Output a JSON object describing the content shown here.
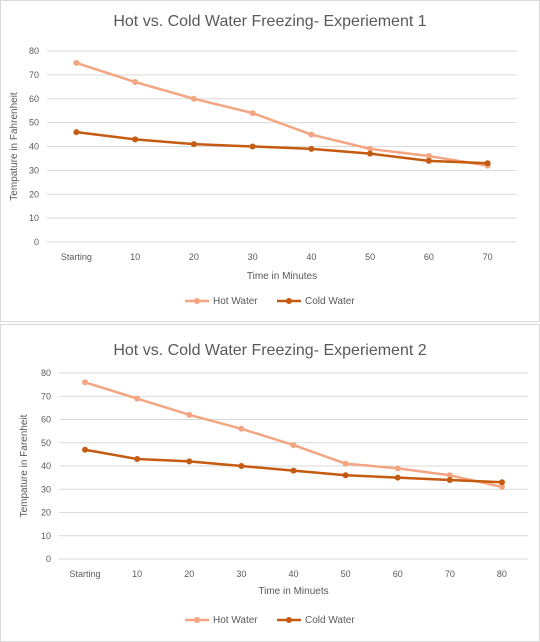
{
  "chart_data": [
    {
      "type": "line",
      "title": "Hot vs. Cold Water Freezing- Experiement 1",
      "xlabel": "Time  in Minutes",
      "ylabel": "Tempature  in Fahrenheit",
      "categories": [
        "Starting",
        "10",
        "20",
        "30",
        "40",
        "50",
        "60",
        "70"
      ],
      "ylim": [
        0,
        80
      ],
      "yticks": [
        "0",
        "10",
        "20",
        "30",
        "40",
        "50",
        "60",
        "70",
        "80"
      ],
      "grid": true,
      "legend_position": "bottom",
      "series": [
        {
          "name": "Hot Water",
          "color": "#f4a582",
          "values": [
            75,
            67,
            60,
            54,
            45,
            39,
            36,
            32
          ]
        },
        {
          "name": "Cold Water",
          "color": "#c55a11",
          "values": [
            46,
            43,
            41,
            40,
            39,
            37,
            34,
            33
          ]
        }
      ]
    },
    {
      "type": "line",
      "title": "Hot vs. Cold Water Freezing- Experiement 2",
      "xlabel": "Time  in Minuets",
      "ylabel": "Tempature  in Farenheit",
      "categories": [
        "Starting",
        "10",
        "20",
        "30",
        "40",
        "50",
        "60",
        "70",
        "80"
      ],
      "ylim": [
        0,
        80
      ],
      "yticks": [
        "0",
        "10",
        "20",
        "30",
        "40",
        "50",
        "60",
        "70",
        "80"
      ],
      "grid": true,
      "legend_position": "bottom",
      "series": [
        {
          "name": "Hot Water",
          "color": "#f4a582",
          "values": [
            76,
            69,
            62,
            56,
            49,
            41,
            39,
            36,
            31
          ]
        },
        {
          "name": "Cold Water",
          "color": "#c55a11",
          "values": [
            47,
            43,
            42,
            40,
            38,
            36,
            35,
            34,
            33
          ]
        }
      ]
    }
  ]
}
